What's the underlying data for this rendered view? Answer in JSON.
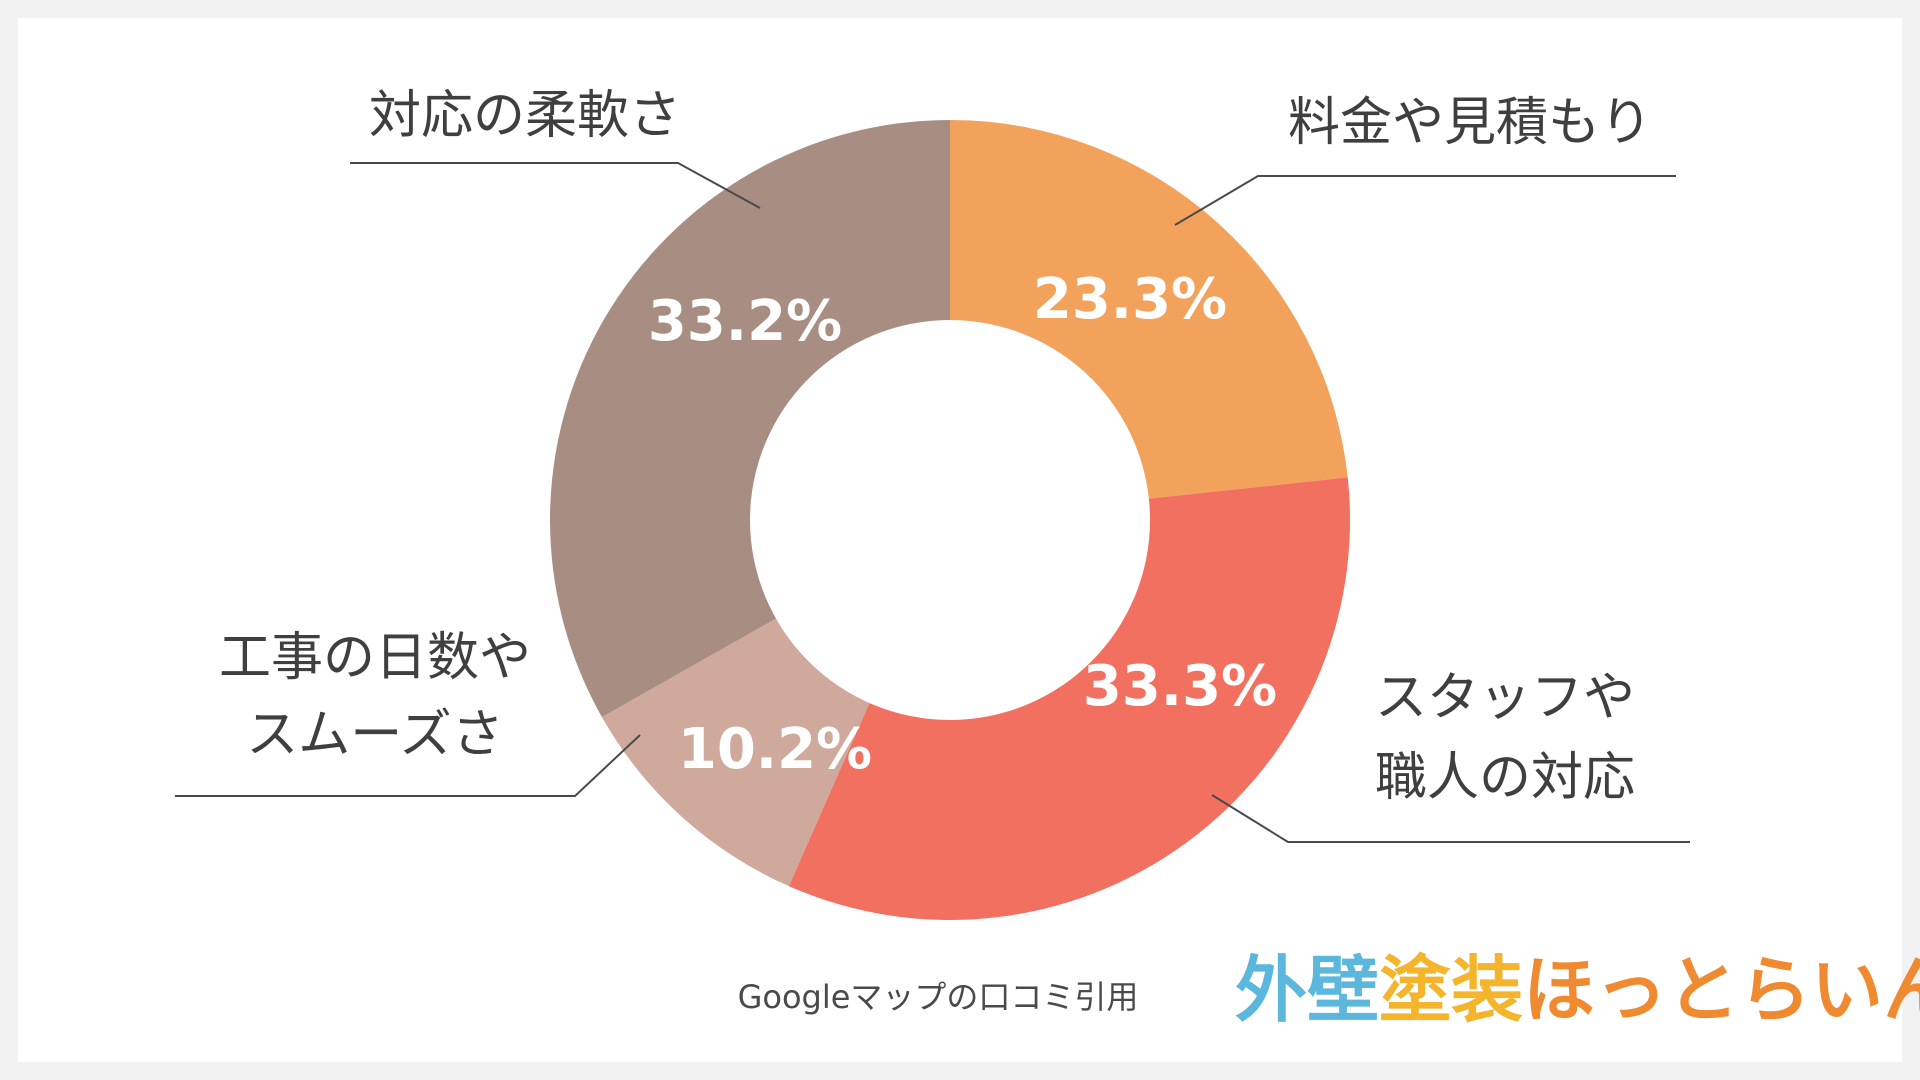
{
  "chart_data": {
    "type": "pie",
    "donut": true,
    "slices": [
      {
        "label": "料金や見積もり",
        "value": 23.3,
        "display": "23.3%",
        "color": "#f3a25c"
      },
      {
        "label": "スタッフや職人の対応",
        "value": 33.3,
        "display": "33.3%",
        "color": "#f27060"
      },
      {
        "label": "工事の日数やスムーズさ",
        "value": 10.2,
        "display": "10.2%",
        "color": "#cfa99b"
      },
      {
        "label": "対応の柔軟さ",
        "value": 33.2,
        "display": "33.2%",
        "color": "#a88e82"
      }
    ]
  },
  "labels": {
    "top_right": "料金や見積もり",
    "right_line1": "スタッフや",
    "right_line2": "職人の対応",
    "left_line1": "工事の日数や",
    "left_line2": "スムーズさ",
    "top_left": "対応の柔軟さ"
  },
  "source": "Googleマップの口コミ引用",
  "logo": {
    "part1": "外壁",
    "part2": "塗装",
    "part3": "ほっとらいん"
  }
}
